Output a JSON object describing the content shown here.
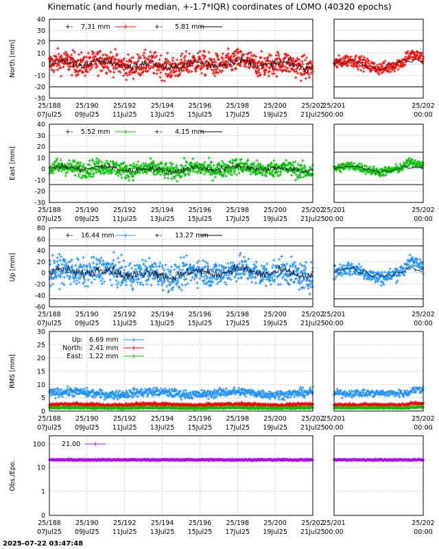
{
  "title": "Kinematic (and hourly median, +-1.7*IQR) coordinates of LOMO (40320 epochs)",
  "footer_timestamp": "2025-07-22 03:47:48",
  "x_ticks_main": [
    {
      "top": "25/188",
      "bottom": "07Jul25"
    },
    {
      "top": "25/190",
      "bottom": "09Jul25"
    },
    {
      "top": "25/192",
      "bottom": "11Jul25"
    },
    {
      "top": "25/194",
      "bottom": "13Jul25"
    },
    {
      "top": "25/196",
      "bottom": "15Jul25"
    },
    {
      "top": "25/198",
      "bottom": "17Jul25"
    },
    {
      "top": "25/200",
      "bottom": "19Jul25"
    },
    {
      "top": "25/202",
      "bottom": "21Jul25"
    }
  ],
  "x_ticks_zoom": [
    {
      "top": "25/201",
      "bottom": "00:00"
    },
    {
      "top": "25/202",
      "bottom": "00:00"
    }
  ],
  "chart_data": [
    {
      "type": "scatter",
      "panel": "north",
      "ylabel": "North [mm]",
      "ylim": [
        -30,
        40
      ],
      "yticks": [
        "40",
        "30",
        "20",
        "10",
        "0",
        "-10",
        "-20",
        "-30"
      ],
      "color": "#ff0000",
      "iqr_band": [
        -20,
        21
      ],
      "legend": [
        {
          "label": "7.31 mm",
          "style": "points"
        },
        {
          "label": "5.81 mm",
          "style": "line"
        }
      ]
    },
    {
      "type": "scatter",
      "panel": "east",
      "ylabel": "East [mm]",
      "ylim": [
        -30,
        40
      ],
      "yticks": [
        "40",
        "30",
        "20",
        "10",
        "0",
        "-10",
        "-20",
        "-30"
      ],
      "color": "#00c000",
      "iqr_band": [
        -14,
        15
      ],
      "legend": [
        {
          "label": "5.52 mm",
          "style": "points"
        },
        {
          "label": "4.15 mm",
          "style": "line"
        }
      ]
    },
    {
      "type": "scatter",
      "panel": "up",
      "ylabel": "Up [mm]",
      "ylim": [
        -60,
        80
      ],
      "yticks": [
        "80",
        "60",
        "40",
        "20",
        "0",
        "-20",
        "-40",
        "-60"
      ],
      "color": "#1e90ff",
      "iqr_band": [
        -46,
        48
      ],
      "legend": [
        {
          "label": "16.44 mm",
          "style": "points"
        },
        {
          "label": "13.27 mm",
          "style": "line"
        }
      ]
    },
    {
      "type": "scatter",
      "panel": "rms",
      "ylabel": "RMS [mm]",
      "ylim": [
        0,
        30
      ],
      "yticks": [
        "30",
        "25",
        "20",
        "15",
        "10",
        "5",
        "0"
      ],
      "series": [
        {
          "name": "Up:",
          "value_label": "6.69 mm",
          "color": "#1e90ff",
          "level": 6.7
        },
        {
          "name": "North:",
          "value_label": "2.41 mm",
          "color": "#ff0000",
          "level": 2.4
        },
        {
          "name": "East:",
          "value_label": "1.22 mm",
          "color": "#00c000",
          "level": 1.2
        }
      ]
    },
    {
      "type": "scatter",
      "panel": "obs",
      "ylabel": "Obs./Epo.",
      "yscale": "log",
      "yticks": [
        "100",
        "10",
        "1",
        "0"
      ],
      "color": "#b000ff",
      "level": 21.0,
      "legend": [
        {
          "label": "21.00",
          "style": "points"
        }
      ]
    }
  ]
}
